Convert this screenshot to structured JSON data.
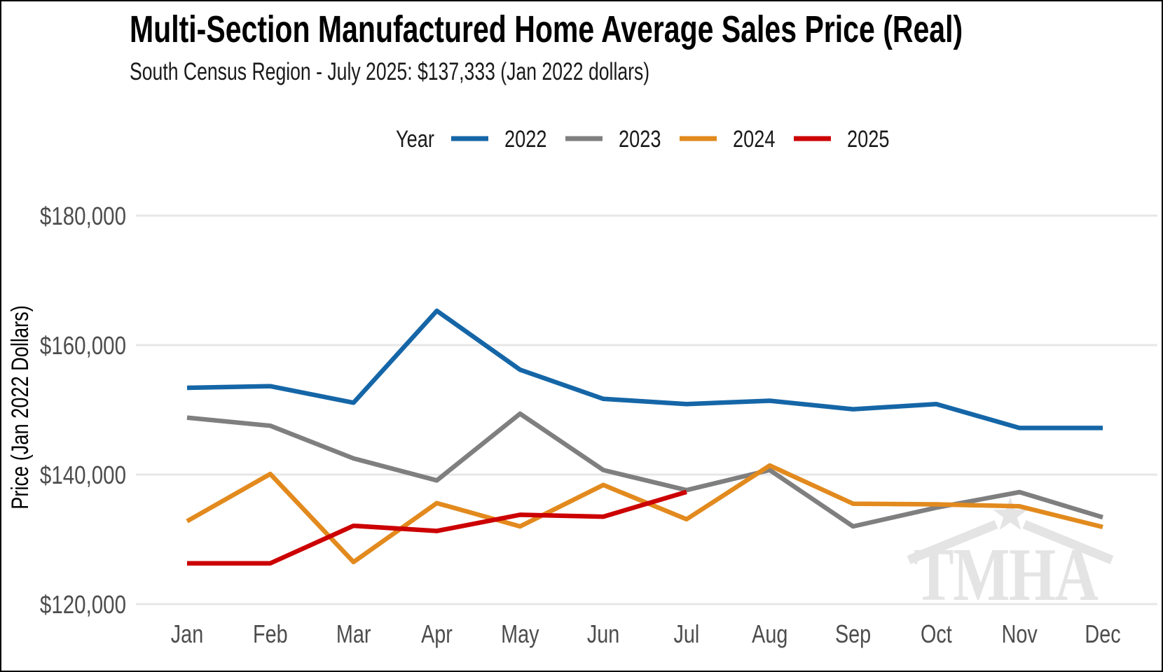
{
  "watermark": "TMHA",
  "chart_data": {
    "type": "line",
    "title": "Multi-Section Manufactured Home Average Sales Price (Real)",
    "subtitle": "South Census Region - July 2025: $137,333 (Jan 2022 dollars)",
    "legend_title": "Year",
    "legend_position": "top",
    "grid": "horizontal-only",
    "xlabel": "",
    "ylabel": "Price (Jan 2022 Dollars)",
    "x_categories": [
      "Jan",
      "Feb",
      "Mar",
      "Apr",
      "May",
      "Jun",
      "Jul",
      "Aug",
      "Sep",
      "Oct",
      "Nov",
      "Dec"
    ],
    "yticks": [
      {
        "label": "$180,000",
        "value": 180000
      },
      {
        "label": "$160,000",
        "value": 160000
      },
      {
        "label": "$140,000",
        "value": 140000
      },
      {
        "label": "$120,000",
        "value": 120000
      }
    ],
    "ylim": [
      120000,
      180000
    ],
    "highlight_value": "July 2025: $137,333",
    "series": [
      {
        "name": "2022",
        "color": "#1566A7",
        "values": [
          153400,
          153650,
          151100,
          165300,
          156200,
          151700,
          150900,
          151400,
          150100,
          150900,
          147200,
          147200
        ]
      },
      {
        "name": "2023",
        "color": "#7F7F7F",
        "values": [
          148800,
          147550,
          142500,
          139100,
          149400,
          140700,
          137600,
          140700,
          132000,
          134900,
          137300,
          133400
        ]
      },
      {
        "name": "2024",
        "color": "#E28A1E",
        "values": [
          132800,
          140100,
          126500,
          135600,
          132000,
          138400,
          133100,
          141400,
          135500,
          135400,
          135100,
          131900
        ]
      },
      {
        "name": "2025",
        "color": "#CC0000",
        "values": [
          126300,
          126300,
          132100,
          131300,
          133800,
          133500,
          137333
        ]
      }
    ]
  }
}
